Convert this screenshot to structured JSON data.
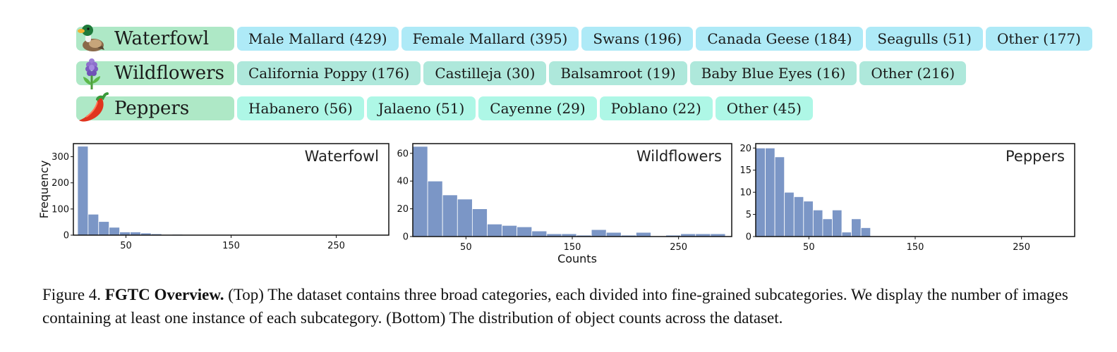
{
  "categories": [
    {
      "name": "Waterfowl",
      "icon": "duck-icon",
      "label_color": "#aee8c6",
      "chip_color": "#aeeaf7",
      "subcategories": [
        "Male Mallard (429)",
        "Female Mallard (395)",
        "Swans (196)",
        "Canada Geese (184)",
        "Seagulls (51)",
        "Other (177)"
      ]
    },
    {
      "name": "Wildflowers",
      "icon": "hyacinth-icon",
      "label_color": "#aee8c6",
      "chip_color": "#aee8db",
      "subcategories": [
        "California Poppy (176)",
        "Castilleja (30)",
        "Balsamroot (19)",
        "Baby Blue Eyes (16)",
        "Other (216)"
      ]
    },
    {
      "name": "Peppers",
      "icon": "chili-pepper-icon",
      "label_color": "#aee8c6",
      "chip_color": "#aef7e6",
      "subcategories": [
        "Habanero (56)",
        "Jalaeno (51)",
        "Cayenne (29)",
        "Poblano (22)",
        "Other (45)"
      ]
    }
  ],
  "chart_data": [
    {
      "type": "bar",
      "title": "Waterfowl",
      "ylabel": "Frequency",
      "xlabel": "",
      "xlim": [
        0,
        300
      ],
      "ylim": [
        0,
        350
      ],
      "yticks": [
        0,
        100,
        200,
        300
      ],
      "xticks": [
        50,
        150,
        250
      ],
      "bin_width": 10,
      "bin_start": 4,
      "bar_color": "#7b96c6",
      "values": [
        340,
        80,
        52,
        30,
        12,
        12,
        8,
        5,
        2,
        3,
        2,
        1,
        1,
        1,
        1,
        1,
        0,
        0,
        0,
        0,
        0,
        0,
        0,
        0,
        0,
        0,
        0,
        0,
        0
      ]
    },
    {
      "type": "bar",
      "title": "Wildflowers",
      "ylabel": "",
      "xlabel": "Counts",
      "xlim": [
        0,
        300
      ],
      "ylim": [
        0,
        67
      ],
      "yticks": [
        0,
        20,
        40,
        60
      ],
      "xticks": [
        50,
        150,
        250
      ],
      "bin_width": 14,
      "bin_start": 0,
      "bar_color": "#7b96c6",
      "values": [
        65,
        40,
        30,
        27,
        20,
        9,
        8,
        7,
        4,
        2,
        2,
        1,
        5,
        3,
        1,
        3,
        0,
        1,
        2,
        2,
        2
      ]
    },
    {
      "type": "bar",
      "title": "Peppers",
      "ylabel": "",
      "xlabel": "",
      "xlim": [
        0,
        300
      ],
      "ylim": [
        0,
        21
      ],
      "yticks": [
        0,
        5,
        10,
        15,
        20
      ],
      "xticks": [
        50,
        150,
        250
      ],
      "bin_width": 9,
      "bin_start": 0,
      "bar_color": "#7b96c6",
      "values": [
        20,
        20,
        18,
        10,
        9,
        8,
        6,
        4,
        6,
        1,
        4,
        2,
        0,
        0,
        0,
        0,
        0,
        0,
        0,
        0,
        0,
        0,
        0,
        0,
        0,
        0,
        0,
        0,
        0,
        0,
        0,
        0,
        0,
        0,
        0,
        0,
        0,
        0,
        0,
        0
      ]
    }
  ],
  "caption": {
    "figure_label": "Figure 4.",
    "bold_title": "FGTC Overview.",
    "text": " (Top) The dataset contains three broad categories, each divided into fine-grained subcategories. We display the number of images containing at least one instance of each subcategory. (Bottom) The distribution of object counts across the dataset."
  }
}
